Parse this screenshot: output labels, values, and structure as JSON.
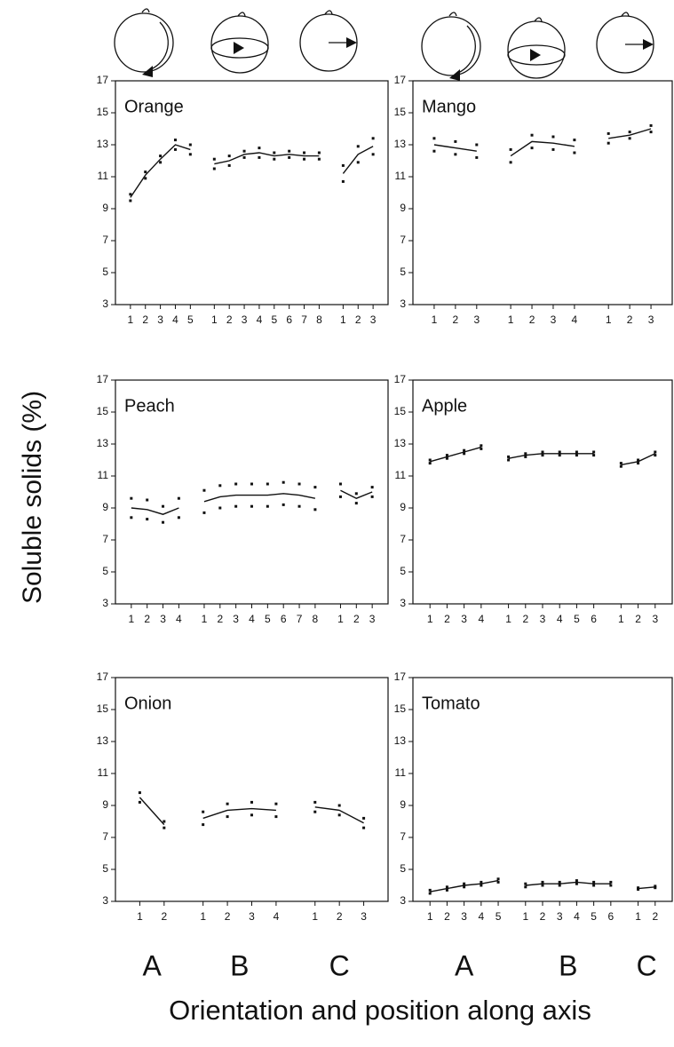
{
  "figure": {
    "ylabel": "Soluble solids (%)",
    "xlabel": "Orientation and position along axis",
    "columns": [
      [
        "A",
        "B",
        "C"
      ],
      [
        "A",
        "B",
        "C"
      ]
    ]
  },
  "chart_data": [
    {
      "type": "line",
      "title": "Orange",
      "ylim": [
        3,
        17
      ],
      "yticks": [
        3,
        5,
        7,
        9,
        11,
        13,
        15,
        17
      ],
      "groups": [
        {
          "x": [
            1,
            2,
            3,
            4,
            5
          ],
          "values": [
            9.7,
            11.1,
            12.1,
            13.0,
            12.7
          ],
          "errors": [
            0.2,
            0.2,
            0.2,
            0.3,
            0.3
          ]
        },
        {
          "x": [
            1,
            2,
            3,
            4,
            5,
            6,
            7,
            8
          ],
          "values": [
            11.8,
            12.0,
            12.4,
            12.5,
            12.3,
            12.4,
            12.3,
            12.3
          ],
          "errors": [
            0.3,
            0.3,
            0.2,
            0.3,
            0.2,
            0.2,
            0.2,
            0.2
          ]
        },
        {
          "x": [
            1,
            2,
            3
          ],
          "values": [
            11.2,
            12.4,
            12.9
          ],
          "errors": [
            0.5,
            0.5,
            0.5
          ]
        }
      ]
    },
    {
      "type": "line",
      "title": "Mango",
      "ylim": [
        3,
        17
      ],
      "yticks": [
        3,
        5,
        7,
        9,
        11,
        13,
        15,
        17
      ],
      "groups": [
        {
          "x": [
            1,
            2,
            3
          ],
          "values": [
            13.0,
            12.8,
            12.6
          ],
          "errors": [
            0.4,
            0.4,
            0.4
          ]
        },
        {
          "x": [
            1,
            2,
            3,
            4
          ],
          "values": [
            12.3,
            13.2,
            13.1,
            12.9
          ],
          "errors": [
            0.4,
            0.4,
            0.4,
            0.4
          ]
        },
        {
          "x": [
            1,
            2,
            3
          ],
          "values": [
            13.4,
            13.6,
            14.0
          ],
          "errors": [
            0.3,
            0.2,
            0.2
          ]
        }
      ]
    },
    {
      "type": "line",
      "title": "Peach",
      "ylim": [
        3,
        17
      ],
      "yticks": [
        3,
        5,
        7,
        9,
        11,
        13,
        15,
        17
      ],
      "groups": [
        {
          "x": [
            1,
            2,
            3,
            4
          ],
          "values": [
            9.0,
            8.9,
            8.6,
            9.0
          ],
          "errors": [
            0.6,
            0.6,
            0.5,
            0.6
          ]
        },
        {
          "x": [
            1,
            2,
            3,
            4,
            5,
            6,
            7,
            8
          ],
          "values": [
            9.4,
            9.7,
            9.8,
            9.8,
            9.8,
            9.9,
            9.8,
            9.6
          ],
          "errors": [
            0.7,
            0.7,
            0.7,
            0.7,
            0.7,
            0.7,
            0.7,
            0.7
          ]
        },
        {
          "x": [
            1,
            2,
            3
          ],
          "values": [
            10.1,
            9.6,
            10.0
          ],
          "errors": [
            0.4,
            0.3,
            0.3
          ]
        }
      ]
    },
    {
      "type": "line",
      "title": "Apple",
      "ylim": [
        3,
        17
      ],
      "yticks": [
        3,
        5,
        7,
        9,
        11,
        13,
        15,
        17
      ],
      "groups": [
        {
          "x": [
            1,
            2,
            3,
            4
          ],
          "values": [
            11.9,
            12.2,
            12.5,
            12.8
          ],
          "errors": [
            0.1,
            0.1,
            0.1,
            0.1
          ]
        },
        {
          "x": [
            1,
            2,
            3,
            4,
            5,
            6
          ],
          "values": [
            12.1,
            12.3,
            12.4,
            12.4,
            12.4,
            12.4
          ],
          "errors": [
            0.1,
            0.1,
            0.1,
            0.1,
            0.1,
            0.1
          ]
        },
        {
          "x": [
            1,
            2,
            3
          ],
          "values": [
            11.7,
            11.9,
            12.4
          ],
          "errors": [
            0.1,
            0.1,
            0.1
          ]
        }
      ]
    },
    {
      "type": "line",
      "title": "Onion",
      "ylim": [
        3,
        17
      ],
      "yticks": [
        3,
        5,
        7,
        9,
        11,
        13,
        15,
        17
      ],
      "groups": [
        {
          "x": [
            1,
            2
          ],
          "values": [
            9.5,
            7.8
          ],
          "errors": [
            0.3,
            0.2
          ]
        },
        {
          "x": [
            1,
            2,
            3,
            4
          ],
          "values": [
            8.2,
            8.7,
            8.8,
            8.7
          ],
          "errors": [
            0.4,
            0.4,
            0.4,
            0.4
          ]
        },
        {
          "x": [
            1,
            2,
            3
          ],
          "values": [
            8.9,
            8.7,
            7.9
          ],
          "errors": [
            0.3,
            0.3,
            0.3
          ]
        }
      ]
    },
    {
      "type": "line",
      "title": "Tomato",
      "ylim": [
        3,
        17
      ],
      "yticks": [
        3,
        5,
        7,
        9,
        11,
        13,
        15,
        17
      ],
      "groups": [
        {
          "x": [
            1,
            2,
            3,
            4,
            5
          ],
          "values": [
            3.6,
            3.8,
            4.0,
            4.1,
            4.3
          ],
          "errors": [
            0.1,
            0.1,
            0.1,
            0.1,
            0.1
          ]
        },
        {
          "x": [
            1,
            2,
            3,
            4,
            5,
            6
          ],
          "values": [
            4.0,
            4.1,
            4.1,
            4.2,
            4.1,
            4.1
          ],
          "errors": [
            0.1,
            0.1,
            0.1,
            0.1,
            0.1,
            0.1
          ]
        },
        {
          "x": [
            1,
            2
          ],
          "values": [
            3.8,
            3.9
          ],
          "errors": [
            0.05,
            0.05
          ]
        }
      ]
    }
  ]
}
